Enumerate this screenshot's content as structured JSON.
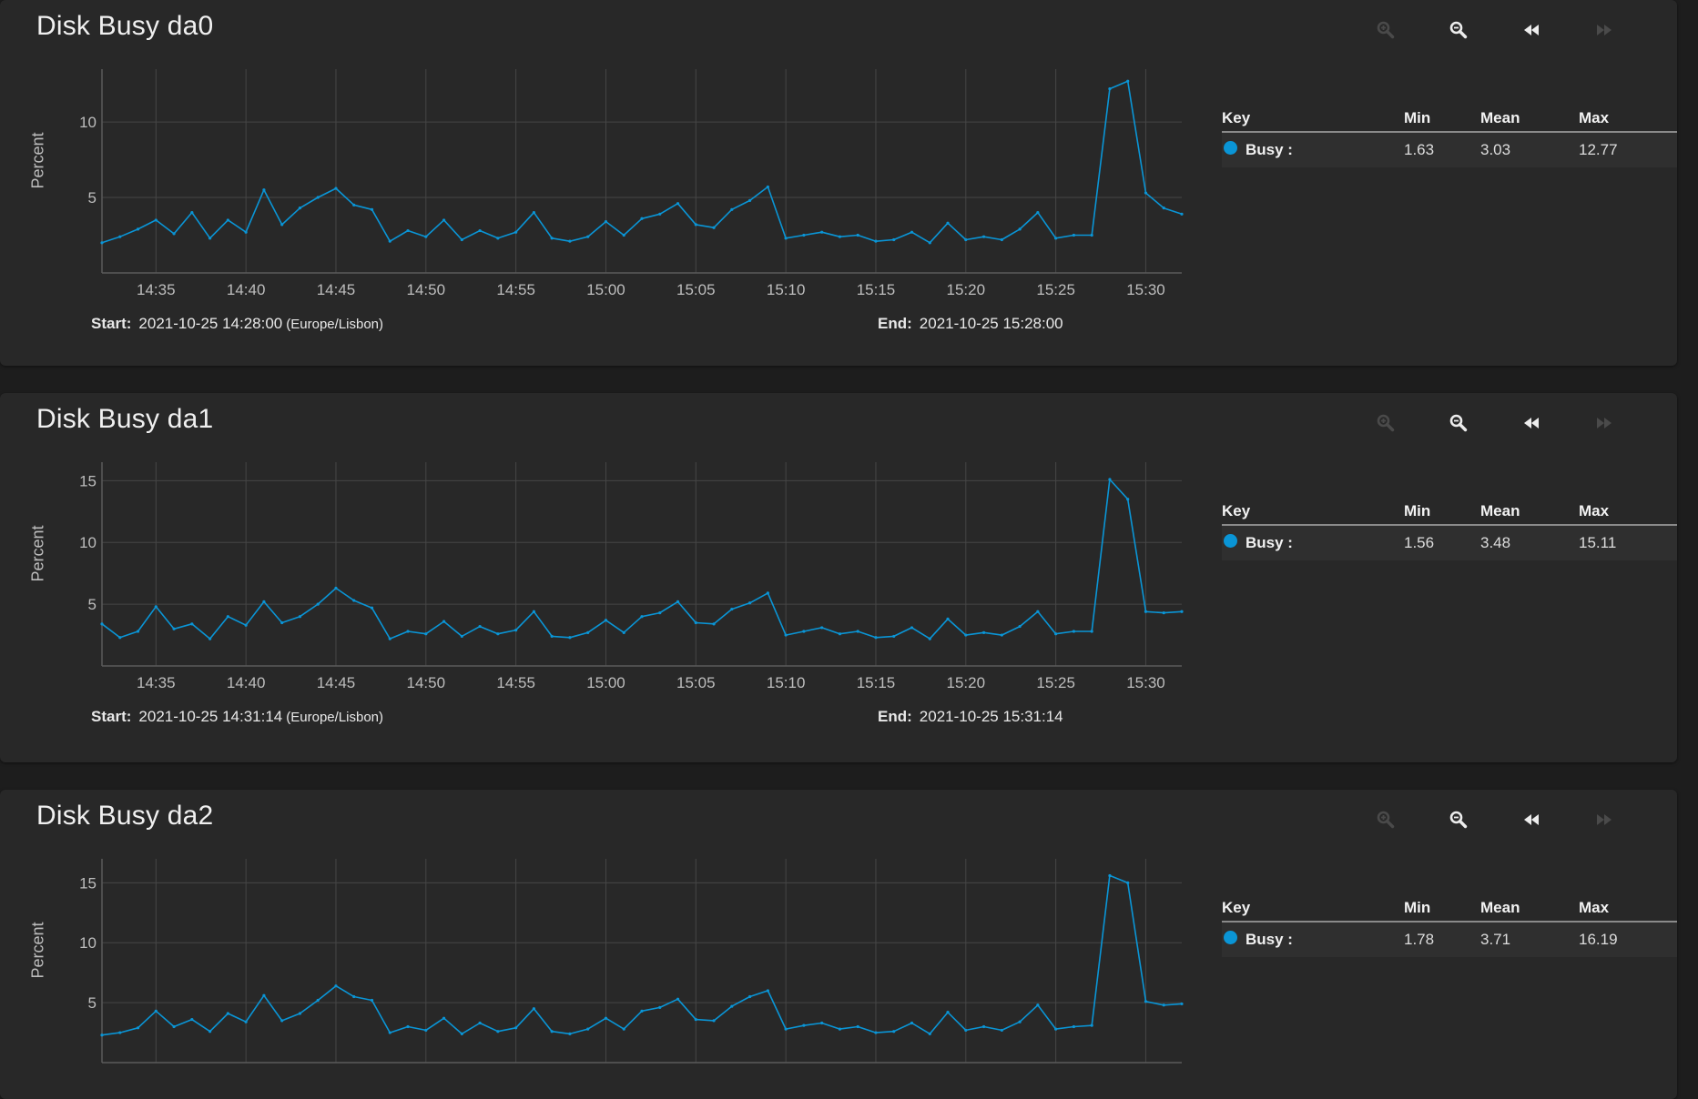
{
  "colors": {
    "accent": "#0a95d6",
    "background": "#1d1d1d",
    "card": "#282828",
    "grid": "#464646"
  },
  "toolbar_icons": [
    "zoom-in-icon",
    "zoom-out-icon",
    "step-back-icon",
    "step-forward-icon"
  ],
  "legend_header": {
    "key": "Key",
    "min": "Min",
    "mean": "Mean",
    "max": "Max"
  },
  "cards": [
    {
      "title": "Disk Busy da0",
      "start_label": "Start:",
      "start_value": "2021-10-25 14:28:00",
      "timezone": "(Europe/Lisbon)",
      "end_label": "End:",
      "end_value": "2021-10-25 15:28:00",
      "legend": {
        "name": "Busy :",
        "min": "1.63",
        "mean": "3.03",
        "max": "12.77"
      }
    },
    {
      "title": "Disk Busy da1",
      "start_label": "Start:",
      "start_value": "2021-10-25 14:31:14",
      "timezone": "(Europe/Lisbon)",
      "end_label": "End:",
      "end_value": "2021-10-25 15:31:14",
      "legend": {
        "name": "Busy :",
        "min": "1.56",
        "mean": "3.48",
        "max": "15.11"
      }
    },
    {
      "title": "Disk Busy da2",
      "start_label": "Start:",
      "start_value": "",
      "timezone": "",
      "end_label": "End:",
      "end_value": "",
      "legend": {
        "name": "Busy :",
        "min": "1.78",
        "mean": "3.71",
        "max": "16.19"
      }
    }
  ],
  "chart_data": [
    {
      "type": "line",
      "title": "Disk Busy da0",
      "ylabel": "Percent",
      "xlabel": "",
      "x_ticks": [
        "14:35",
        "14:40",
        "14:45",
        "14:50",
        "14:55",
        "15:00",
        "15:05",
        "15:10",
        "15:15",
        "15:20",
        "15:25",
        "15:30"
      ],
      "x_tick_minutes": [
        35,
        40,
        45,
        50,
        55,
        60,
        65,
        70,
        75,
        80,
        85,
        90
      ],
      "xlim_minutes": [
        32,
        92
      ],
      "y_ticks": [
        5,
        10
      ],
      "ylim": [
        0,
        13.5
      ],
      "grid": true,
      "series": [
        {
          "name": "Busy",
          "color": "#0a95d6",
          "x_minutes": [
            32,
            33,
            34,
            35,
            36,
            37,
            38,
            39,
            40,
            41,
            42,
            43,
            44,
            45,
            46,
            47,
            48,
            49,
            50,
            51,
            52,
            53,
            54,
            55,
            56,
            57,
            58,
            59,
            60,
            61,
            62,
            63,
            64,
            65,
            66,
            67,
            68,
            69,
            70,
            71,
            72,
            73,
            74,
            75,
            76,
            77,
            78,
            79,
            80,
            81,
            82,
            83,
            84,
            85,
            86,
            87,
            88,
            89,
            90,
            91,
            92
          ],
          "values": [
            2.0,
            2.4,
            2.9,
            3.5,
            2.6,
            4.0,
            2.3,
            3.5,
            2.7,
            5.5,
            3.2,
            4.3,
            5.0,
            5.6,
            4.5,
            4.2,
            2.1,
            2.8,
            2.4,
            3.5,
            2.2,
            2.8,
            2.3,
            2.7,
            4.0,
            2.3,
            2.1,
            2.4,
            3.4,
            2.5,
            3.6,
            3.9,
            4.6,
            3.2,
            3.0,
            4.2,
            4.8,
            5.7,
            2.3,
            2.5,
            2.7,
            2.4,
            2.5,
            2.1,
            2.2,
            2.7,
            2.0,
            3.3,
            2.2,
            2.4,
            2.2,
            2.9,
            4.0,
            2.3,
            2.5,
            2.5,
            12.2,
            12.7,
            5.3,
            4.3,
            3.9
          ]
        }
      ]
    },
    {
      "type": "line",
      "title": "Disk Busy da1",
      "ylabel": "Percent",
      "xlabel": "",
      "x_ticks": [
        "14:35",
        "14:40",
        "14:45",
        "14:50",
        "14:55",
        "15:00",
        "15:05",
        "15:10",
        "15:15",
        "15:20",
        "15:25",
        "15:30"
      ],
      "x_tick_minutes": [
        35,
        40,
        45,
        50,
        55,
        60,
        65,
        70,
        75,
        80,
        85,
        90
      ],
      "xlim_minutes": [
        32,
        92
      ],
      "y_ticks": [
        5,
        10,
        15
      ],
      "ylim": [
        0,
        16.5
      ],
      "grid": true,
      "series": [
        {
          "name": "Busy",
          "color": "#0a95d6",
          "x_minutes": [
            32,
            33,
            34,
            35,
            36,
            37,
            38,
            39,
            40,
            41,
            42,
            43,
            44,
            45,
            46,
            47,
            48,
            49,
            50,
            51,
            52,
            53,
            54,
            55,
            56,
            57,
            58,
            59,
            60,
            61,
            62,
            63,
            64,
            65,
            66,
            67,
            68,
            69,
            70,
            71,
            72,
            73,
            74,
            75,
            76,
            77,
            78,
            79,
            80,
            81,
            82,
            83,
            84,
            85,
            86,
            87,
            88,
            89,
            90,
            91,
            92
          ],
          "values": [
            3.4,
            2.3,
            2.8,
            4.8,
            3.0,
            3.4,
            2.2,
            4.0,
            3.3,
            5.2,
            3.5,
            4.0,
            5.0,
            6.3,
            5.3,
            4.7,
            2.2,
            2.8,
            2.6,
            3.6,
            2.4,
            3.2,
            2.6,
            2.9,
            4.4,
            2.4,
            2.3,
            2.7,
            3.7,
            2.7,
            4.0,
            4.3,
            5.2,
            3.5,
            3.4,
            4.6,
            5.1,
            5.9,
            2.5,
            2.8,
            3.1,
            2.6,
            2.8,
            2.3,
            2.4,
            3.1,
            2.2,
            3.8,
            2.5,
            2.7,
            2.5,
            3.2,
            4.4,
            2.6,
            2.8,
            2.8,
            15.1,
            13.5,
            4.4,
            4.3,
            4.4
          ]
        }
      ]
    },
    {
      "type": "line",
      "title": "Disk Busy da2",
      "ylabel": "Percent",
      "xlabel": "",
      "x_ticks": [],
      "x_tick_minutes": [
        35,
        40,
        45,
        50,
        55,
        60,
        65,
        70,
        75,
        80,
        85,
        90
      ],
      "xlim_minutes": [
        32,
        92
      ],
      "y_ticks": [
        5,
        10,
        15
      ],
      "ylim": [
        0,
        17
      ],
      "grid": true,
      "series": [
        {
          "name": "Busy",
          "color": "#0a95d6",
          "x_minutes": [
            32,
            33,
            34,
            35,
            36,
            37,
            38,
            39,
            40,
            41,
            42,
            43,
            44,
            45,
            46,
            47,
            48,
            49,
            50,
            51,
            52,
            53,
            54,
            55,
            56,
            57,
            58,
            59,
            60,
            61,
            62,
            63,
            64,
            65,
            66,
            67,
            68,
            69,
            70,
            71,
            72,
            73,
            74,
            75,
            76,
            77,
            78,
            79,
            80,
            81,
            82,
            83,
            84,
            85,
            86,
            87,
            88,
            89,
            90,
            91,
            92
          ],
          "values": [
            2.3,
            2.5,
            2.9,
            4.3,
            3.0,
            3.6,
            2.6,
            4.1,
            3.4,
            5.6,
            3.5,
            4.1,
            5.2,
            6.4,
            5.5,
            5.2,
            2.5,
            3.0,
            2.7,
            3.7,
            2.4,
            3.3,
            2.6,
            2.9,
            4.5,
            2.6,
            2.4,
            2.8,
            3.7,
            2.8,
            4.3,
            4.6,
            5.3,
            3.6,
            3.5,
            4.7,
            5.5,
            6.0,
            2.8,
            3.1,
            3.3,
            2.8,
            3.0,
            2.5,
            2.6,
            3.3,
            2.4,
            4.2,
            2.7,
            3.0,
            2.7,
            3.4,
            4.8,
            2.8,
            3.0,
            3.1,
            15.6,
            15.0,
            5.1,
            4.8,
            4.9
          ]
        }
      ]
    }
  ]
}
